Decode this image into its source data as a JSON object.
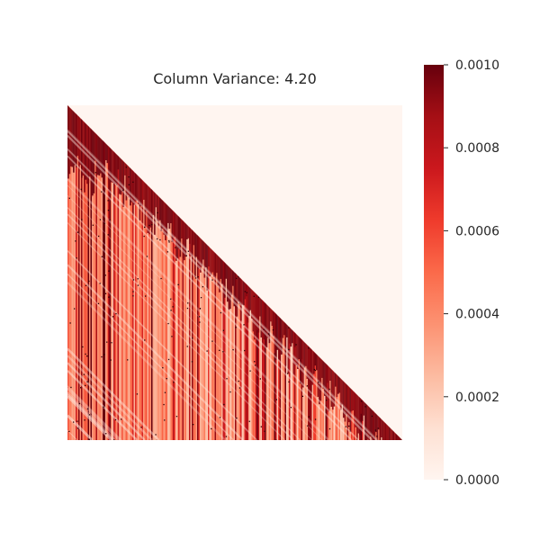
{
  "chart_data": {
    "type": "heatmap",
    "title": "Column Variance: 4.20",
    "mask": "upper-triangle",
    "colormap": "Reds",
    "colormap_stops": [
      "#fff5f0",
      "#fee0d2",
      "#fcbba1",
      "#fc9272",
      "#fb6a4a",
      "#ef3b2c",
      "#cb181d",
      "#a50f15",
      "#67000d"
    ],
    "mask_color": "#fff5f0",
    "vmin": 0.0,
    "vmax": 0.001,
    "colorbar": {
      "ticks": [
        0.0,
        0.0002,
        0.0004,
        0.0006,
        0.0008,
        0.001
      ],
      "tick_labels": [
        "0.0000",
        "0.0002",
        "0.0004",
        "0.0006",
        "0.0008",
        "0.0010"
      ]
    },
    "xticks": [],
    "yticks": []
  }
}
